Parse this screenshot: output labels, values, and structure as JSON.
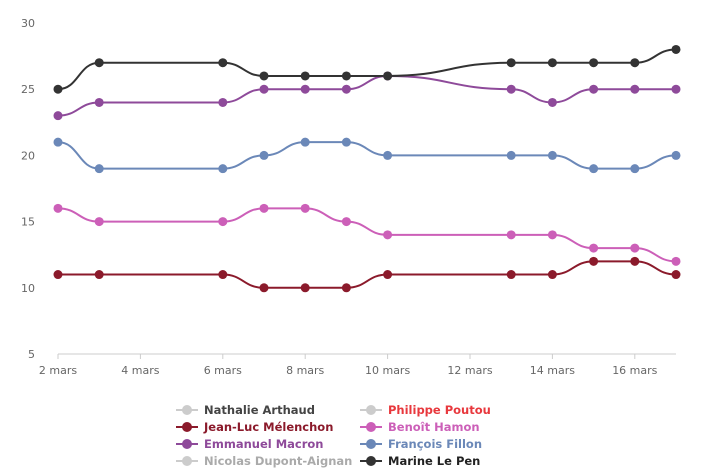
{
  "chart_data": {
    "type": "line",
    "title": "",
    "xlabel": "",
    "ylabel": "",
    "ylim": [
      5,
      30
    ],
    "yticks": [
      5,
      10,
      15,
      20,
      25,
      30
    ],
    "xlim": [
      2,
      17
    ],
    "xticks": [
      {
        "value": 2,
        "label": "2 mars"
      },
      {
        "value": 4,
        "label": "4 mars"
      },
      {
        "value": 6,
        "label": "6 mars"
      },
      {
        "value": 8,
        "label": "8 mars"
      },
      {
        "value": 10,
        "label": "10 mars"
      },
      {
        "value": 12,
        "label": "12 mars"
      },
      {
        "value": 14,
        "label": "14 mars"
      },
      {
        "value": 16,
        "label": "16 mars"
      }
    ],
    "grid": false,
    "legend_position": "bottom",
    "series": [
      {
        "name": "Nathalie Arthaud",
        "color": "#cccccc",
        "text_color": "#444444",
        "points": []
      },
      {
        "name": "Philippe Poutou",
        "color": "#cccccc",
        "text_color": "#e8383d",
        "points": []
      },
      {
        "name": "Jean-Luc Mélenchon",
        "color": "#8b1a2b",
        "text_color": "#8b1a2b",
        "points": [
          [
            2,
            11
          ],
          [
            3,
            11
          ],
          [
            6,
            11
          ],
          [
            7,
            10
          ],
          [
            8,
            10
          ],
          [
            9,
            10
          ],
          [
            10,
            11
          ],
          [
            13,
            11
          ],
          [
            14,
            11
          ],
          [
            15,
            12
          ],
          [
            16,
            12
          ],
          [
            17,
            11
          ]
        ]
      },
      {
        "name": "Benoît Hamon",
        "color": "#cc5fb8",
        "text_color": "#cc5fb8",
        "points": [
          [
            2,
            16
          ],
          [
            3,
            15
          ],
          [
            6,
            15
          ],
          [
            7,
            16
          ],
          [
            8,
            16
          ],
          [
            9,
            15
          ],
          [
            10,
            14
          ],
          [
            13,
            14
          ],
          [
            14,
            14
          ],
          [
            15,
            13
          ],
          [
            16,
            13
          ],
          [
            17,
            12
          ]
        ]
      },
      {
        "name": "Emmanuel Macron",
        "color": "#8e4a9a",
        "text_color": "#8e4a9a",
        "points": [
          [
            2,
            23
          ],
          [
            3,
            24
          ],
          [
            6,
            24
          ],
          [
            7,
            25
          ],
          [
            8,
            25
          ],
          [
            9,
            25
          ],
          [
            10,
            26
          ],
          [
            13,
            25
          ],
          [
            14,
            24
          ],
          [
            15,
            25
          ],
          [
            16,
            25
          ],
          [
            17,
            25
          ]
        ]
      },
      {
        "name": "François Fillon",
        "color": "#6b88b8",
        "text_color": "#6b88b8",
        "points": [
          [
            2,
            21
          ],
          [
            3,
            19
          ],
          [
            6,
            19
          ],
          [
            7,
            20
          ],
          [
            8,
            21
          ],
          [
            9,
            21
          ],
          [
            10,
            20
          ],
          [
            13,
            20
          ],
          [
            14,
            20
          ],
          [
            15,
            19
          ],
          [
            16,
            19
          ],
          [
            17,
            20
          ]
        ]
      },
      {
        "name": "Nicolas Dupont-Aignan",
        "color": "#cccccc",
        "text_color": "#aaaaaa",
        "points": []
      },
      {
        "name": "Marine Le Pen",
        "color": "#333333",
        "text_color": "#222222",
        "points": [
          [
            2,
            25
          ],
          [
            3,
            27
          ],
          [
            6,
            27
          ],
          [
            7,
            26
          ],
          [
            8,
            26
          ],
          [
            9,
            26
          ],
          [
            10,
            26
          ],
          [
            13,
            27
          ],
          [
            14,
            27
          ],
          [
            15,
            27
          ],
          [
            16,
            27
          ],
          [
            17,
            28
          ]
        ]
      }
    ]
  }
}
